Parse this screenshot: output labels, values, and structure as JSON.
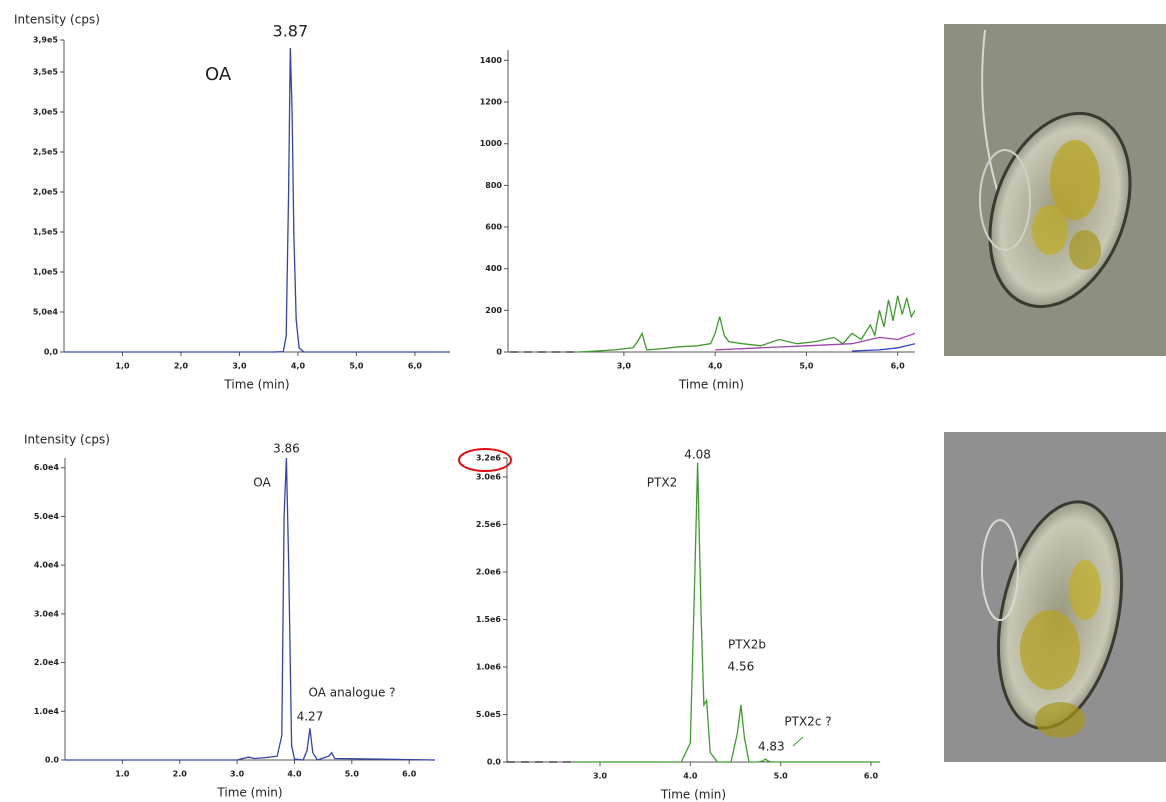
{
  "chart_data": [
    {
      "type": "line",
      "ylabel": "Intensity (cps)",
      "xlabel": "Time (min)",
      "xlim": [
        0,
        6.6
      ],
      "ylim": [
        0,
        390000
      ],
      "xticks": [
        {
          "value": 1,
          "label": "1,0"
        },
        {
          "value": 2,
          "label": "2,0"
        },
        {
          "value": 3,
          "label": "3,0"
        },
        {
          "value": 4,
          "label": "4,0"
        },
        {
          "value": 5,
          "label": "5,0"
        },
        {
          "value": 6,
          "label": "6,0"
        }
      ],
      "yticks": [
        {
          "value": 0,
          "label": "0,0"
        },
        {
          "value": 50000,
          "label": "5,0e4"
        },
        {
          "value": 100000,
          "label": "1,0e5"
        },
        {
          "value": 150000,
          "label": "1,5e5"
        },
        {
          "value": 200000,
          "label": "2,0e5"
        },
        {
          "value": 250000,
          "label": "2,5e5"
        },
        {
          "value": 300000,
          "label": "3,0e5"
        },
        {
          "value": 350000,
          "label": "3,5e5"
        },
        {
          "value": 390000,
          "label": "3,9e5"
        }
      ],
      "peaks": [
        3.87
      ],
      "annotations": [
        "OA"
      ],
      "series": [
        {
          "color": "#3443a8",
          "x": [
            0,
            3.6,
            3.75,
            3.8,
            3.84,
            3.87,
            3.9,
            3.93,
            3.97,
            4.02,
            4.1,
            6.6
          ],
          "values": [
            0,
            0,
            500,
            20000,
            200000,
            380000,
            300000,
            150000,
            40000,
            5000,
            0,
            0
          ]
        }
      ]
    },
    {
      "type": "line",
      "xlabel": "Time (min)",
      "xlim": [
        1.73,
        6.19
      ],
      "ylim": [
        0,
        1450
      ],
      "xticks": [
        {
          "value": 3,
          "label": "3,0"
        },
        {
          "value": 4,
          "label": "4,0"
        },
        {
          "value": 5,
          "label": "5,0"
        },
        {
          "value": 6,
          "label": "6,0"
        }
      ],
      "yticks": [
        0,
        200,
        400,
        600,
        800,
        1000,
        1200,
        1400
      ],
      "series": [
        {
          "color": "#222222",
          "dash": true,
          "x": [
            1.75,
            2.5
          ],
          "values": [
            0,
            0
          ]
        },
        {
          "color": "#3f9a2e",
          "x": [
            2.5,
            2.7,
            2.9,
            3.1,
            3.15,
            3.2,
            3.25,
            3.4,
            3.6,
            3.8,
            3.95,
            4.0,
            4.05,
            4.1,
            4.15,
            4.3,
            4.5,
            4.7,
            4.9,
            5.1,
            5.3,
            5.4,
            5.5,
            5.6,
            5.7,
            5.75,
            5.8,
            5.85,
            5.9,
            5.95,
            6.0,
            6.05,
            6.1,
            6.15,
            6.19
          ],
          "values": [
            0,
            5,
            10,
            20,
            50,
            90,
            10,
            15,
            25,
            30,
            40,
            90,
            170,
            80,
            50,
            40,
            30,
            60,
            40,
            50,
            70,
            40,
            90,
            60,
            130,
            80,
            200,
            120,
            250,
            150,
            270,
            180,
            260,
            170,
            200
          ]
        },
        {
          "color": "#a040b0",
          "x": [
            4.0,
            4.5,
            5.0,
            5.5,
            5.8,
            6.0,
            6.19
          ],
          "values": [
            10,
            20,
            30,
            40,
            70,
            60,
            90
          ]
        },
        {
          "color": "#3443c8",
          "x": [
            5.5,
            5.8,
            6.0,
            6.1,
            6.19
          ],
          "values": [
            5,
            10,
            20,
            30,
            40
          ]
        }
      ]
    },
    {
      "type": "line",
      "ylabel": "Intensity (cps)",
      "xlabel": "Time (min)",
      "xlim": [
        0,
        6.45
      ],
      "ylim": [
        0,
        62000
      ],
      "xticks": [
        {
          "value": 1,
          "label": "1.0"
        },
        {
          "value": 2,
          "label": "2.0"
        },
        {
          "value": 3,
          "label": "3.0"
        },
        {
          "value": 4,
          "label": "4.0"
        },
        {
          "value": 5,
          "label": "5.0"
        },
        {
          "value": 6,
          "label": "6.0"
        }
      ],
      "yticks": [
        {
          "value": 0,
          "label": "0.0"
        },
        {
          "value": 10000,
          "label": "1.0e4"
        },
        {
          "value": 20000,
          "label": "2.0e4"
        },
        {
          "value": 30000,
          "label": "3.0e4"
        },
        {
          "value": 40000,
          "label": "4.0e4"
        },
        {
          "value": 50000,
          "label": "5.0e4"
        },
        {
          "value": 60000,
          "label": "6.0e4"
        }
      ],
      "peaks": [
        3.86,
        4.27
      ],
      "annotations": [
        "OA",
        "OA analogue ?"
      ],
      "series": [
        {
          "color": "#3443a8",
          "x": [
            0,
            3.0,
            3.2,
            3.3,
            3.5,
            3.7,
            3.78,
            3.82,
            3.86,
            3.9,
            3.95,
            4.0,
            4.15,
            4.22,
            4.27,
            4.32,
            4.4,
            4.6,
            4.65,
            4.7,
            6.45
          ],
          "values": [
            0,
            0,
            600,
            300,
            500,
            800,
            5000,
            50000,
            62000,
            40000,
            3000,
            200,
            0,
            2000,
            6500,
            1500,
            0,
            800,
            1500,
            300,
            0
          ]
        }
      ]
    },
    {
      "type": "line",
      "xlabel": "Time (min)",
      "xlim": [
        1.97,
        6.1
      ],
      "ylim": [
        0,
        3200000
      ],
      "xticks": [
        {
          "value": 3,
          "label": "3.0"
        },
        {
          "value": 4,
          "label": "4.0"
        },
        {
          "value": 5,
          "label": "5.0"
        },
        {
          "value": 6,
          "label": "6.0"
        }
      ],
      "yticks": [
        {
          "value": 0,
          "label": "0.0"
        },
        {
          "value": 500000,
          "label": "5.0e5"
        },
        {
          "value": 1000000,
          "label": "1.0e6"
        },
        {
          "value": 1500000,
          "label": "1.5e6"
        },
        {
          "value": 2000000,
          "label": "2.0e6"
        },
        {
          "value": 2500000,
          "label": "2.5e6"
        },
        {
          "value": 3000000,
          "label": "3.0e6"
        },
        {
          "value": 3200000,
          "label": "3.2e6"
        }
      ],
      "peaks": [
        4.08,
        4.56,
        4.83
      ],
      "annotations": [
        "PTX2",
        "PTX2b",
        "PTX2c ?"
      ],
      "series": [
        {
          "color": "#222222",
          "dash": true,
          "x": [
            1.97,
            2.7
          ],
          "values": [
            0,
            0
          ]
        },
        {
          "color": "#3f9a2e",
          "x": [
            2.7,
            3.9,
            4.0,
            4.05,
            4.08,
            4.12,
            4.15,
            4.18,
            4.22,
            4.3,
            4.45,
            4.52,
            4.56,
            4.6,
            4.65,
            4.75,
            4.8,
            4.83,
            4.86,
            4.9,
            6.1
          ],
          "values": [
            0,
            0,
            200000,
            2000000,
            3150000,
            1500000,
            600000,
            650000,
            100000,
            0,
            0,
            300000,
            600000,
            250000,
            0,
            0,
            10000,
            30000,
            10000,
            0,
            0
          ]
        }
      ]
    }
  ]
}
